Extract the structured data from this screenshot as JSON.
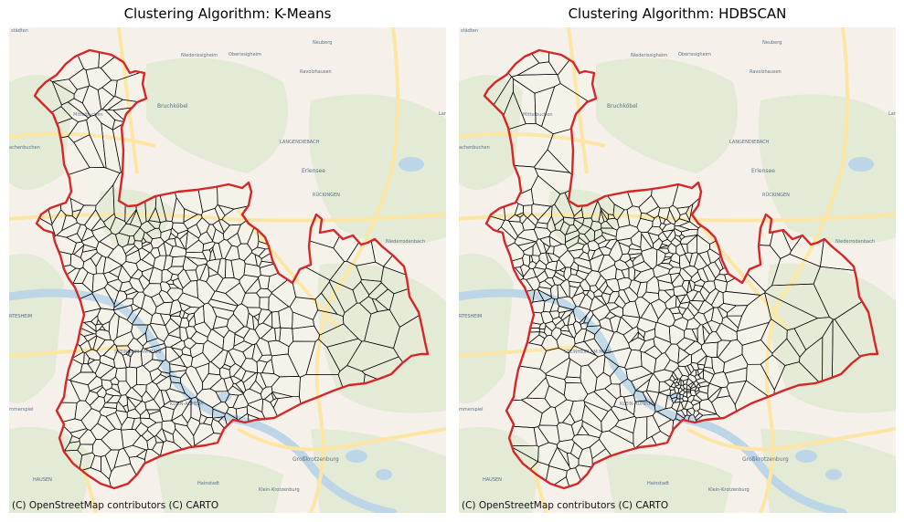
{
  "panels": [
    {
      "title": "Clustering Algorithm: K-Means",
      "attribution": "(C) OpenStreetMap contributors (C) CARTO",
      "algorithm": "kmeans"
    },
    {
      "title": "Clustering Algorithm: HDBSCAN",
      "attribution": "(C) OpenStreetMap contributors (C) CARTO",
      "algorithm": "hdbscan"
    }
  ],
  "places": [
    {
      "name": "städten",
      "cls": "small"
    },
    {
      "name": "Neuberg",
      "cls": "small"
    },
    {
      "name": "Niederissigheim",
      "cls": "small"
    },
    {
      "name": "Oberissigheim",
      "cls": "small"
    },
    {
      "name": "Ravolzhausen",
      "cls": "small"
    },
    {
      "name": "Bruchköbel",
      "cls": "med"
    },
    {
      "name": "Mittelbuchen",
      "cls": "small"
    },
    {
      "name": "Lan",
      "cls": "small"
    },
    {
      "name": "achenbuchen",
      "cls": "small"
    },
    {
      "name": "LANGENDIEBACH",
      "cls": "small"
    },
    {
      "name": "Erlensee",
      "cls": "med"
    },
    {
      "name": "RÜCKINGEN",
      "cls": "small"
    },
    {
      "name": "Niederrodenbach",
      "cls": "small"
    },
    {
      "name": "RTESHEIM",
      "cls": "small"
    },
    {
      "name": "STEINHEIM AM MAIN",
      "cls": "small"
    },
    {
      "name": "mmerspiel",
      "cls": "small"
    },
    {
      "name": "KLEIN-AUHEIM",
      "cls": "small"
    },
    {
      "name": "Großkrotzenburg",
      "cls": "med"
    },
    {
      "name": "HAUSEN",
      "cls": "small"
    },
    {
      "name": "Hainstadt",
      "cls": "small"
    },
    {
      "name": "Klein-Krotzenburg",
      "cls": "small"
    }
  ],
  "colors": {
    "boundary": "#d62728",
    "cell_edge": "#000000",
    "land": "#f5f1ea",
    "green": "#dfe8cf",
    "water": "#bcd6e8",
    "road": "#fde6a3"
  }
}
